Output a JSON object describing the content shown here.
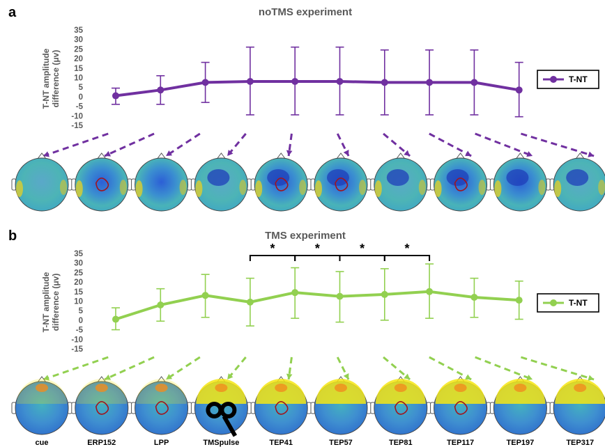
{
  "panels": [
    {
      "letter": "a",
      "title": "noTMS experiment",
      "color": "#7030A0",
      "legend": "T-NT",
      "show_cond_labels": false,
      "sig_brackets": [],
      "map_style": "blue",
      "contour_markers": [
        1,
        4,
        5,
        7
      ]
    },
    {
      "letter": "b",
      "title": "TMS experiment",
      "color": "#92D050",
      "legend": "T-NT",
      "show_cond_labels": true,
      "sig_brackets": [
        [
          3,
          4
        ],
        [
          4,
          5
        ],
        [
          5,
          6
        ],
        [
          6,
          7
        ]
      ],
      "map_style": "yellow",
      "contour_markers": [
        1,
        2,
        4,
        6,
        7
      ]
    }
  ],
  "chart_data": [
    {
      "type": "line",
      "title": "noTMS experiment",
      "ylabel": "T-NT amplitude difference (μv)",
      "ylim": [
        -15,
        35
      ],
      "yticks": [
        35,
        30,
        25,
        20,
        15,
        10,
        5,
        0,
        -5,
        -10,
        -15
      ],
      "categories": [
        "cue",
        "ERP152",
        "LPP",
        "TMSpulse",
        "TEP41",
        "TEP57",
        "TEP81",
        "TEP117",
        "TEP197",
        "TEP317"
      ],
      "series": [
        {
          "name": "T-NT",
          "values": [
            0.5,
            3.5,
            7.5,
            8,
            8,
            8,
            7.5,
            7.5,
            7.5,
            3.5
          ],
          "err_low": [
            -4,
            -4,
            -3,
            -9.5,
            -9.5,
            -9.5,
            -9.5,
            -9.5,
            -9.5,
            -10.5
          ],
          "err_high": [
            4.5,
            11,
            18,
            26,
            26,
            26,
            24.5,
            24.5,
            24.5,
            18
          ]
        }
      ],
      "grid": false,
      "legend_position": "right"
    },
    {
      "type": "line",
      "title": "TMS experiment",
      "ylabel": "T-NT amplitude difference (μv)",
      "ylim": [
        -15,
        35
      ],
      "yticks": [
        35,
        30,
        25,
        20,
        15,
        10,
        5,
        0,
        -5,
        -10,
        -15
      ],
      "categories": [
        "cue",
        "ERP152",
        "LPP",
        "TMSpulse",
        "TEP41",
        "TEP57",
        "TEP81",
        "TEP117",
        "TEP197",
        "TEP317"
      ],
      "series": [
        {
          "name": "T-NT",
          "values": [
            0.5,
            8,
            13,
            9.5,
            14.5,
            12.5,
            13.5,
            15,
            12,
            10.5
          ],
          "err_low": [
            -5,
            -0.5,
            1.5,
            -3,
            1,
            -1,
            0,
            1,
            1.5,
            0.5
          ],
          "err_high": [
            6.5,
            16.5,
            24,
            22,
            27.5,
            25.5,
            27,
            29.5,
            22,
            20.5
          ]
        }
      ],
      "significance": [
        {
          "label": "*",
          "from": "TMSpulse",
          "to": "TEP41"
        },
        {
          "label": "*",
          "from": "TEP41",
          "to": "TEP57"
        },
        {
          "label": "*",
          "from": "TEP57",
          "to": "TEP81"
        },
        {
          "label": "*",
          "from": "TEP81",
          "to": "TEP117"
        }
      ],
      "grid": false,
      "legend_position": "right"
    }
  ]
}
